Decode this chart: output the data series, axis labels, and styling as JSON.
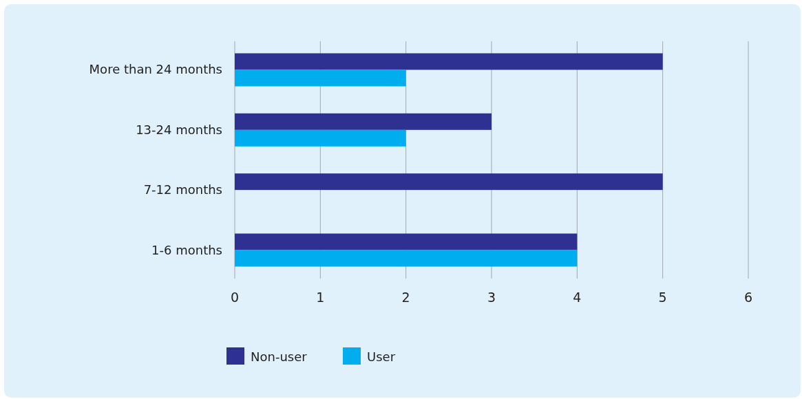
{
  "chart_data": {
    "type": "bar",
    "orientation": "horizontal",
    "categories": [
      "More than 24 months",
      "13-24 months",
      "7-12 months",
      "1-6 months"
    ],
    "series": [
      {
        "name": "Non-user",
        "color": "#2e3192",
        "values": [
          5,
          3,
          5,
          4
        ]
      },
      {
        "name": "User",
        "color": "#00aeef",
        "values": [
          2,
          2,
          null,
          4
        ]
      }
    ],
    "xlim": [
      0,
      6
    ],
    "xticks": [
      0,
      1,
      2,
      3,
      4,
      5,
      6
    ],
    "grid": "x",
    "legend": "bottom"
  }
}
